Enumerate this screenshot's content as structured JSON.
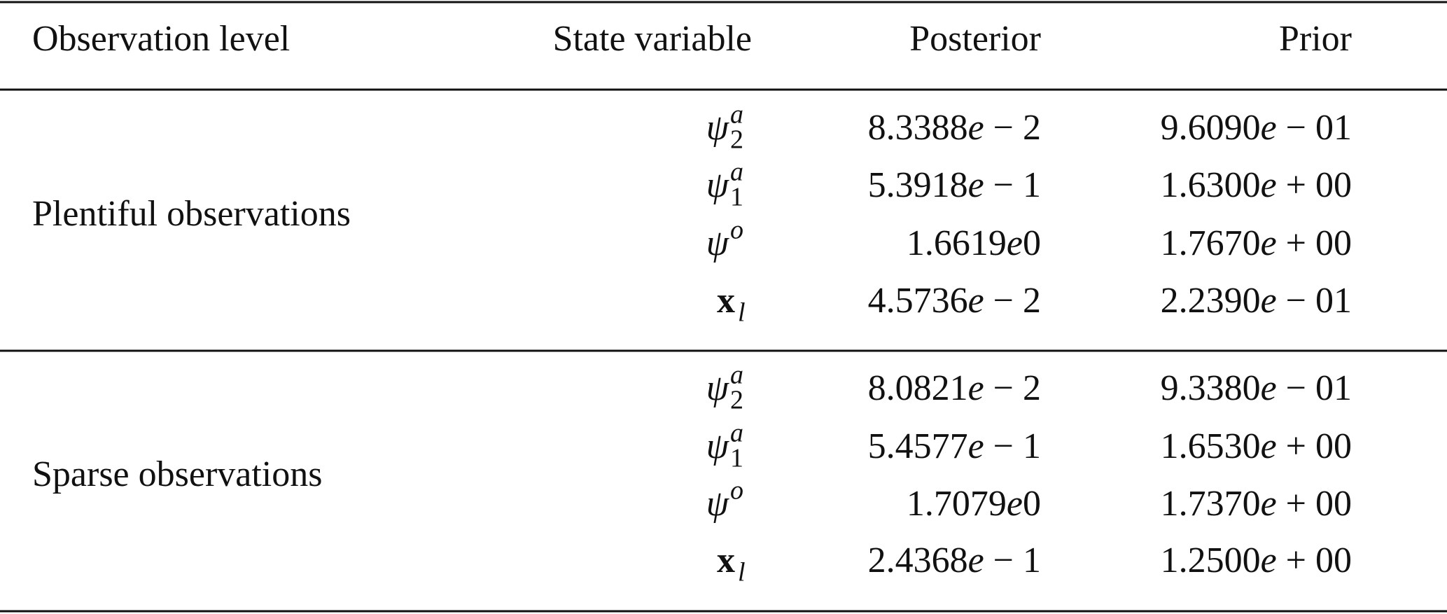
{
  "table": {
    "header": [
      "Observation level",
      "State variable",
      "Posterior",
      "Prior"
    ],
    "groups": [
      {
        "label": "Plentiful observations",
        "rows": [
          {
            "variable": {
              "base": "ψ",
              "sub": "2",
              "sup": "a"
            },
            "posterior": "8.3388e − 2",
            "prior": "9.6090e − 01"
          },
          {
            "variable": {
              "base": "ψ",
              "sub": "1",
              "sup": "a"
            },
            "posterior": "5.3918e − 1",
            "prior": "1.6300e + 00"
          },
          {
            "variable": {
              "base": "ψ",
              "sup": "o"
            },
            "posterior": "1.6619e0",
            "prior": "1.7670e + 00"
          },
          {
            "variable": {
              "base": "x",
              "sub": "l"
            },
            "posterior": "4.5736e − 2",
            "prior": "2.2390e − 01"
          }
        ]
      },
      {
        "label": "Sparse observations",
        "rows": [
          {
            "variable": {
              "base": "ψ",
              "sub": "2",
              "sup": "a"
            },
            "posterior": "8.0821e − 2",
            "prior": "9.3380e − 01"
          },
          {
            "variable": {
              "base": "ψ",
              "sub": "1",
              "sup": "a"
            },
            "posterior": "5.4577e − 1",
            "prior": "1.6530e + 00"
          },
          {
            "variable": {
              "base": "ψ",
              "sup": "o"
            },
            "posterior": "1.7079e0",
            "prior": "1.7370e + 00"
          },
          {
            "variable": {
              "base": "x",
              "sub": "l"
            },
            "posterior": "2.4368e − 1",
            "prior": "1.2500e + 00"
          }
        ]
      }
    ]
  }
}
